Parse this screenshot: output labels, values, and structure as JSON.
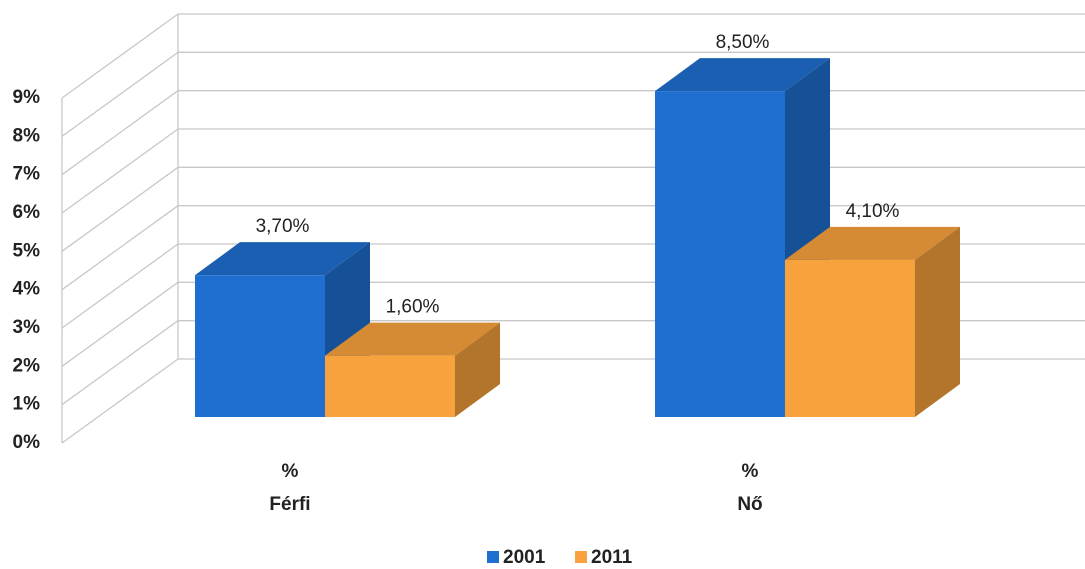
{
  "chart_data": {
    "type": "bar3d",
    "categories": [
      [
        "%",
        "Férfi"
      ],
      [
        "%",
        "Nő"
      ]
    ],
    "series": [
      {
        "name": "2001",
        "color": "#1f6fd0",
        "values": [
          3.7,
          8.5
        ],
        "value_labels": [
          "3,70%",
          "8,50%"
        ]
      },
      {
        "name": "2011",
        "color": "#f7a23c",
        "values": [
          1.6,
          4.1
        ],
        "value_labels": [
          "1,60%",
          "4,10%"
        ]
      }
    ],
    "ylim": [
      0,
      9
    ],
    "yticks": [
      {
        "value": 0,
        "label": "0%"
      },
      {
        "value": 1,
        "label": "1%"
      },
      {
        "value": 2,
        "label": "2%"
      },
      {
        "value": 3,
        "label": "3%"
      },
      {
        "value": 4,
        "label": "4%"
      },
      {
        "value": 5,
        "label": "5%"
      },
      {
        "value": 6,
        "label": "6%"
      },
      {
        "value": 7,
        "label": "7%"
      },
      {
        "value": 8,
        "label": "8%"
      },
      {
        "value": 9,
        "label": "9%"
      }
    ],
    "grid": true,
    "legend": "bottom"
  }
}
